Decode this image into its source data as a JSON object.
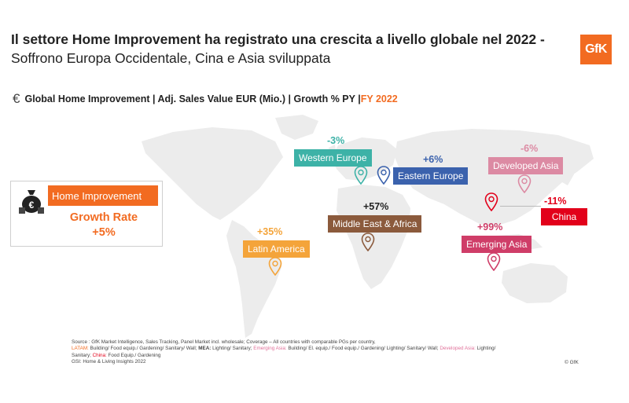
{
  "title": {
    "bold": "Il settore Home Improvement ha registrato una crescita a livello globale nel 2022 -",
    "normal": " Soffrono Europa Occidentale, Cina e Asia sviluppata"
  },
  "logo": "GfK",
  "subtitle": {
    "prefix": "Global Home Improvement  | Adj. Sales Value EUR (Mio.) | Growth % PY |",
    "fy": " FY 2022"
  },
  "kpi": {
    "label": "Home Improvement",
    "rate_title": "Growth Rate",
    "rate_value": "+5%"
  },
  "regions": [
    {
      "id": "western-europe",
      "name": "Western Europe",
      "growth": "-3%",
      "color": "#3db2a7"
    },
    {
      "id": "eastern-europe",
      "name": "Eastern Europe",
      "growth": "+6%",
      "color": "#3b62ad"
    },
    {
      "id": "developed-asia",
      "name": "Developed Asia",
      "growth": "-6%",
      "color": "#dc8aa3"
    },
    {
      "id": "middle-east-africa",
      "name": "Middle East & Africa",
      "growth": "+57%",
      "color": "#8b5a3c"
    },
    {
      "id": "china",
      "name": "China",
      "growth": "-11%",
      "color": "#e2001a"
    },
    {
      "id": "latin-america",
      "name": "Latin America",
      "growth": "+35%",
      "color": "#f4a43a"
    },
    {
      "id": "emerging-asia",
      "name": "Emerging Asia",
      "growth": "+99%",
      "color": "#cf3d68"
    }
  ],
  "source": {
    "line1": "Source : GfK Market Intelligence, Sales Tracking, Panel Market incl. wholesale; Coverage – All countries with comparable PGs per country,",
    "latam_label": "LATAM:",
    "latam": " Building/ Food equip./ Gardening/ Sanitary/ Wall;",
    "mea_label": " MEA:",
    "mea": " Lighting/ Sanitary;",
    "ea_label": " Emerging Asia:",
    "ea": " Building/ El. equip./ Food equip./ Gardening/ Lighting/ Sanitary/ Wall;",
    "da_label": " Developed Asia:",
    "da": " Lighting/",
    "line3a": "Sanitary;",
    "china_label": " China:",
    "china": " Food Equip./ Gardening",
    "line4": "GSI: Home & Living Insights 2022"
  },
  "copyright": "© GfK"
}
